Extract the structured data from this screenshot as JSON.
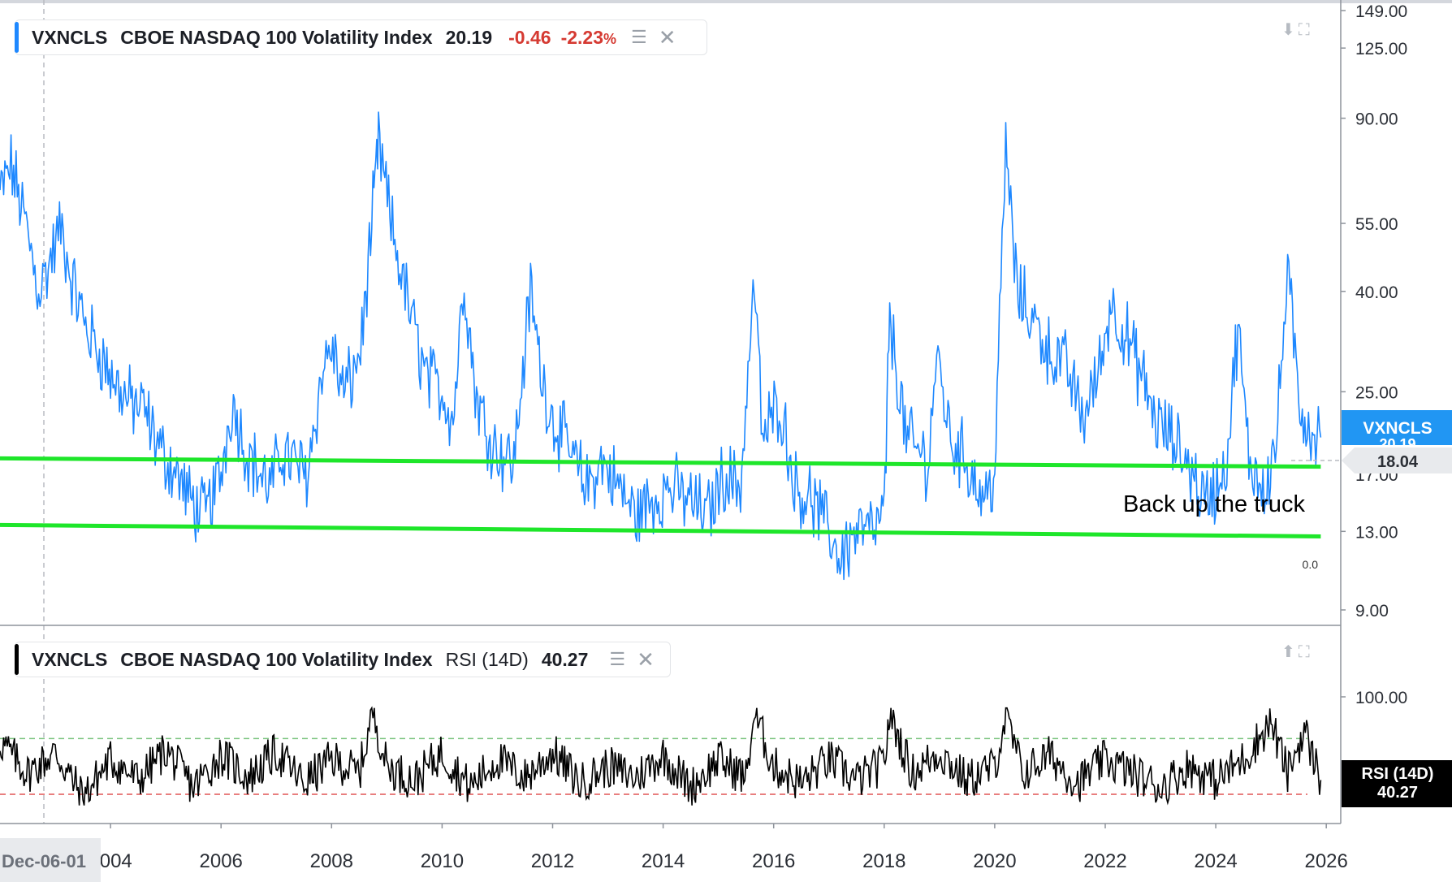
{
  "legend_main": {
    "symbol": "VXNCLS",
    "name": "CBOE NASDAQ 100 Volatility Index",
    "value": "20.19",
    "change": "-0.46",
    "change_pct": "-2.23",
    "pct_sign": "%"
  },
  "legend_rsi": {
    "symbol": "VXNCLS",
    "name": "CBOE NASDAQ 100 Volatility Index",
    "indicator": "RSI (14D)",
    "value": "40.27"
  },
  "icons": {
    "layers": "layers-icon",
    "close": "close-icon",
    "download": "download-icon",
    "expand": "expand-icon",
    "upload": "upload-icon"
  },
  "colors": {
    "series": "#1e88ff",
    "trendline": "#1ee62a",
    "rsi": "#000000",
    "negative": "#d53a32",
    "upper_band": "#7bc47f",
    "lower_band": "#e05555"
  },
  "chart_data": [
    {
      "type": "line",
      "scale": "log",
      "title": "VXNCLS CBOE NASDAQ 100 Volatility Index",
      "y_ticks": [
        149,
        125,
        90,
        55,
        40,
        25,
        17,
        13,
        9
      ],
      "y_tick_labels": [
        "149.00",
        "125.00",
        "90.00",
        "55.00",
        "40.00",
        "25.00",
        "17.00",
        "13.00",
        "9.00"
      ],
      "ylim": [
        7.8,
        149
      ],
      "xlim": [
        2002.0,
        2026.1
      ],
      "x_ticks": [
        2004,
        2006,
        2008,
        2010,
        2012,
        2014,
        2016,
        2018,
        2020,
        2022,
        2024,
        2026
      ],
      "x_tick_labels": [
        "2004",
        "2006",
        "2008",
        "2010",
        "2012",
        "2014",
        "2016",
        "2018",
        "2020",
        "2022",
        "2024",
        "2026"
      ],
      "crosshair_label": "Dec-06-01",
      "series": [
        {
          "name": "VXNCLS",
          "x": [
            2002.0,
            2002.2,
            2002.45,
            2002.7,
            2002.85,
            2003.1,
            2003.3,
            2003.55,
            2003.8,
            2004.0,
            2004.3,
            2004.6,
            2004.9,
            2005.2,
            2005.45,
            2005.7,
            2006.0,
            2006.2,
            2006.45,
            2006.7,
            2006.9,
            2007.1,
            2007.3,
            2007.55,
            2007.85,
            2008.0,
            2008.2,
            2008.4,
            2008.55,
            2008.75,
            2008.85,
            2009.1,
            2009.4,
            2009.7,
            2010.0,
            2010.2,
            2010.4,
            2010.6,
            2010.8,
            2011.0,
            2011.3,
            2011.6,
            2011.8,
            2012.0,
            2012.3,
            2012.6,
            2012.9,
            2013.2,
            2013.5,
            2013.8,
            2014.1,
            2014.5,
            2014.8,
            2015.1,
            2015.4,
            2015.65,
            2015.8,
            2016.1,
            2016.4,
            2016.7,
            2017.0,
            2017.2,
            2017.5,
            2017.8,
            2018.0,
            2018.1,
            2018.4,
            2018.8,
            2018.95,
            2019.2,
            2019.5,
            2019.8,
            2020.0,
            2020.2,
            2020.4,
            2020.7,
            2021.0,
            2021.3,
            2021.6,
            2021.9,
            2022.1,
            2022.4,
            2022.7,
            2022.9,
            2023.2,
            2023.5,
            2023.8,
            2024.0,
            2024.2,
            2024.4,
            2024.6,
            2024.9,
            2025.1,
            2025.3,
            2025.5,
            2025.7,
            2025.9
          ],
          "y": [
            63,
            72,
            56,
            40,
            44,
            54,
            42,
            34,
            30,
            27,
            24,
            23,
            19,
            17,
            15,
            14,
            17,
            24,
            19,
            17,
            16,
            19,
            18,
            17,
            28,
            31,
            25,
            27,
            32,
            58,
            80,
            53,
            37,
            27,
            25,
            22,
            43,
            25,
            21,
            19,
            18,
            40,
            27,
            22,
            19,
            16,
            18,
            16,
            14,
            15,
            16,
            15,
            14,
            17,
            16,
            42,
            20,
            24,
            16,
            15,
            13,
            11.5,
            13,
            13,
            14,
            35,
            20,
            18,
            30,
            20,
            18,
            15,
            17,
            80,
            40,
            35,
            30,
            28,
            22,
            28,
            38,
            32,
            26,
            22,
            20,
            18,
            15,
            16,
            18,
            34,
            18,
            16,
            20,
            44,
            24,
            21,
            20.19
          ]
        }
      ],
      "current_price_label": "20.19",
      "price_tag_name": "VXNCLS",
      "trendlines": [
        {
          "name": "upper",
          "x": [
            2002.0,
            2025.9
          ],
          "y": [
            18.3,
            17.6
          ]
        },
        {
          "name": "lower",
          "x": [
            2002.0,
            2025.9
          ],
          "y": [
            13.4,
            12.7
          ]
        }
      ],
      "horizontal_line_label": "18.04",
      "fib_label": "0.0",
      "annotations": [
        "Back up the truck"
      ],
      "grid": false
    },
    {
      "type": "line",
      "title": "RSI (14D)",
      "y_tick_labels": [
        "100.00"
      ],
      "bands": [
        70,
        30
      ],
      "current_value": "40.27",
      "price_tag_name": "RSI (14D)",
      "series": [
        {
          "name": "RSI (14D)",
          "x": [
            2002.0,
            2002.5,
            2003.0,
            2003.5,
            2004.0,
            2004.5,
            2005.0,
            2005.5,
            2006.0,
            2006.5,
            2007.0,
            2007.5,
            2008.0,
            2008.5,
            2008.75,
            2009.0,
            2009.5,
            2010.0,
            2010.5,
            2011.0,
            2011.5,
            2012.0,
            2012.5,
            2013.0,
            2013.5,
            2014.0,
            2014.5,
            2015.0,
            2015.5,
            2015.65,
            2016.0,
            2016.5,
            2017.0,
            2017.5,
            2018.0,
            2018.1,
            2018.5,
            2019.0,
            2019.5,
            2020.0,
            2020.2,
            2020.5,
            2021.0,
            2021.5,
            2022.0,
            2022.5,
            2023.0,
            2023.5,
            2024.0,
            2024.5,
            2025.0,
            2025.3,
            2025.6,
            2025.9
          ],
          "y": [
            68,
            45,
            60,
            28,
            55,
            40,
            62,
            35,
            58,
            42,
            60,
            38,
            55,
            45,
            90,
            50,
            40,
            60,
            35,
            55,
            42,
            60,
            38,
            50,
            42,
            58,
            35,
            55,
            42,
            88,
            50,
            38,
            55,
            40,
            52,
            88,
            45,
            60,
            40,
            50,
            86,
            45,
            58,
            38,
            55,
            45,
            35,
            50,
            40,
            55,
            82,
            45,
            76,
            40.27
          ]
        }
      ]
    }
  ]
}
